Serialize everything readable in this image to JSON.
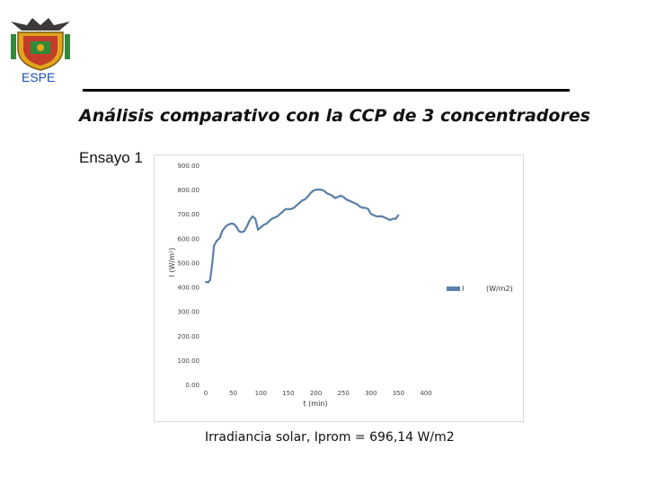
{
  "header": {
    "logo_text": "ESPE",
    "title": "Análisis comparativo con la CCP de 3 concentradores",
    "test_label": "Ensayo 1"
  },
  "caption": "Irradiancia solar, Iprom = 696,14 W/m2",
  "colors": {
    "series": "#5b7fa8",
    "logo_blue": "#1a4fb0"
  },
  "chart_data": {
    "type": "line",
    "xlabel": "t (min)",
    "ylabel": "I (W/m²)",
    "xlim": [
      0,
      400
    ],
    "ylim": [
      0,
      900
    ],
    "x_ticks": [
      "0",
      "50",
      "100",
      "150",
      "200",
      "250",
      "300",
      "350",
      "400"
    ],
    "y_ticks": [
      "0.00",
      "100.00",
      "200.00",
      "300.00",
      "400.00",
      "500.00",
      "600.00",
      "700.00",
      "800.00",
      "900.00"
    ],
    "legend": {
      "position": "right",
      "entries": [
        "I",
        "(W/m2)"
      ]
    },
    "grid": false,
    "series": [
      {
        "x": [
          0,
          5,
          8,
          12,
          15,
          20,
          25,
          30,
          35,
          40,
          45,
          50,
          55,
          60,
          65,
          70,
          75,
          80,
          85,
          90,
          95,
          100,
          105,
          110,
          115,
          120,
          125,
          130,
          135,
          140,
          145,
          150,
          155,
          160,
          165,
          170,
          175,
          180,
          185,
          190,
          195,
          200,
          205,
          210,
          215,
          220,
          225,
          230,
          235,
          240,
          245,
          250,
          255,
          260,
          265,
          270,
          275,
          280,
          285,
          290,
          295,
          300,
          305,
          310,
          315,
          320,
          325,
          330,
          335,
          340,
          345,
          350
        ],
        "values": [
          420,
          420,
          430,
          500,
          570,
          590,
          600,
          630,
          645,
          655,
          660,
          660,
          650,
          630,
          625,
          630,
          650,
          675,
          690,
          680,
          635,
          645,
          655,
          660,
          670,
          680,
          685,
          690,
          700,
          710,
          720,
          720,
          720,
          725,
          735,
          745,
          755,
          760,
          770,
          785,
          795,
          800,
          800,
          800,
          795,
          785,
          780,
          775,
          765,
          770,
          775,
          770,
          760,
          755,
          750,
          745,
          740,
          730,
          725,
          725,
          720,
          700,
          695,
          690,
          690,
          690,
          685,
          680,
          675,
          680,
          680,
          695
        ]
      }
    ]
  }
}
